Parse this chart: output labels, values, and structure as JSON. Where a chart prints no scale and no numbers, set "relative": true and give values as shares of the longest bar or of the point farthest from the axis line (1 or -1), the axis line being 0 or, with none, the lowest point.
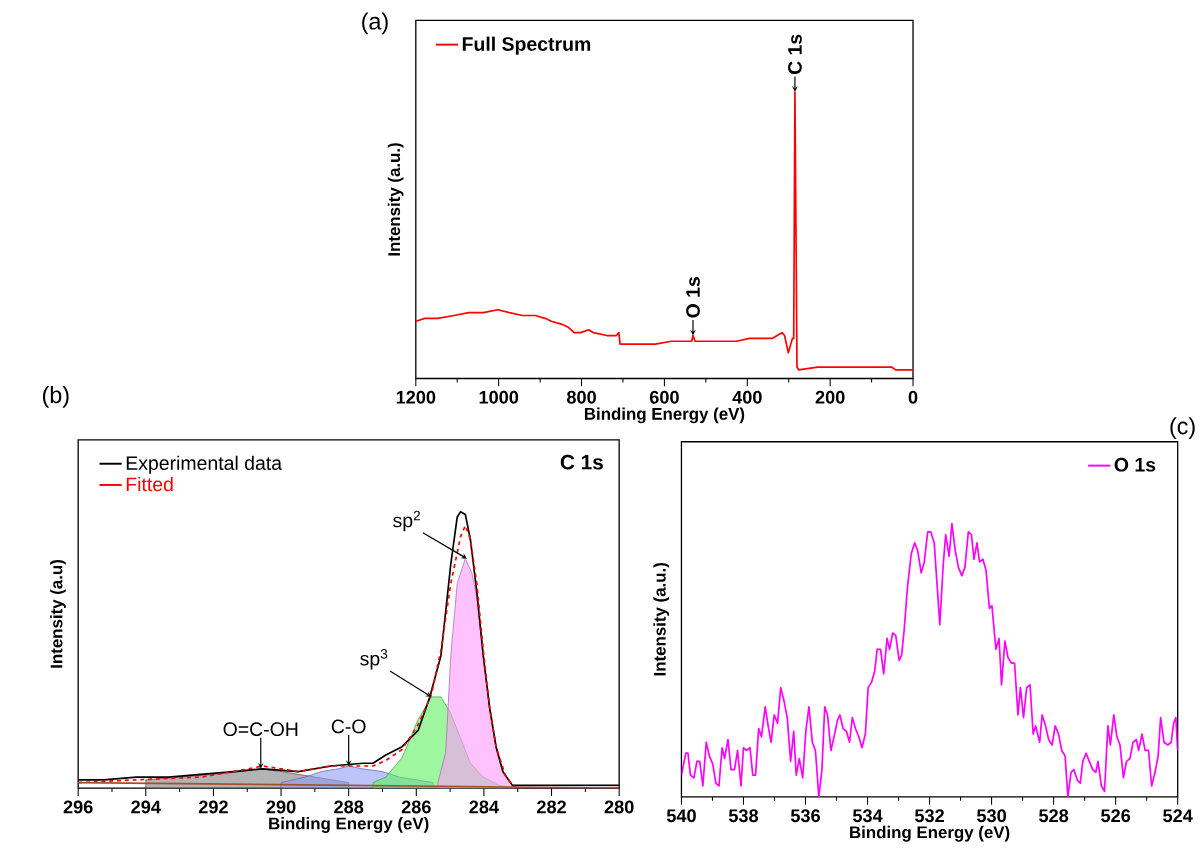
{
  "chart_data": [
    {
      "type": "line",
      "title": "(a)",
      "xlabel": "Binding Energy (eV)",
      "ylabel": "Intensity (a.u.)",
      "relative": true,
      "xlim": [
        1200,
        0
      ],
      "xticks": [
        1200,
        1000,
        800,
        600,
        400,
        200,
        0
      ],
      "tick_labels": "x",
      "legend": "top left",
      "annotations": [
        {
          "text": "O 1s",
          "x": 531,
          "y": 0.15
        },
        {
          "text": "C 1s",
          "x": 285,
          "y": 1.0
        }
      ],
      "series": [
        {
          "name": "Full Spectrum",
          "color": "#ff0000",
          "x": [
            1200,
            1178,
            1147,
            1108,
            1072,
            1037,
            1002,
            974,
            943,
            912,
            888,
            873,
            849,
            833,
            818,
            802,
            783,
            771,
            739,
            716,
            710,
            707,
            692,
            661,
            622,
            583,
            544,
            534,
            531,
            526,
            504,
            465,
            426,
            395,
            363,
            340,
            328,
            316,
            310,
            301,
            295,
            291,
            288,
            285,
            280,
            276,
            230,
            191,
            113,
            58,
            52,
            42,
            19,
            0
          ],
          "values": [
            0.2,
            0.21,
            0.21,
            0.22,
            0.23,
            0.23,
            0.24,
            0.23,
            0.22,
            0.22,
            0.21,
            0.2,
            0.19,
            0.18,
            0.16,
            0.16,
            0.17,
            0.16,
            0.15,
            0.15,
            0.16,
            0.12,
            0.12,
            0.12,
            0.12,
            0.13,
            0.13,
            0.13,
            0.15,
            0.13,
            0.13,
            0.13,
            0.13,
            0.14,
            0.14,
            0.14,
            0.15,
            0.16,
            0.15,
            0.09,
            0.12,
            0.14,
            0.14,
            1.0,
            0.04,
            0.03,
            0.04,
            0.04,
            0.04,
            0.04,
            0.04,
            0.03,
            0.03,
            0.03
          ]
        }
      ]
    },
    {
      "type": "line",
      "title": "(b)",
      "xlabel": "Binding Energy (eV)",
      "ylabel": "Intensity (a.u)",
      "relative": true,
      "xlim": [
        296,
        280
      ],
      "xticks": [
        296,
        294,
        292,
        290,
        288,
        286,
        284,
        282,
        280
      ],
      "tick_labels": "x",
      "legend": "top left",
      "annotations": [
        "C 1s",
        {
          "text": "O=C-OH",
          "x": 290.6,
          "y": 0.07
        },
        {
          "text": "C-O",
          "x": 288.0,
          "y": 0.08
        },
        {
          "text": "sp$^{2}$",
          "x": 284.5,
          "y": 0.83
        },
        {
          "text": "sp$^{3}$",
          "x": 285.55,
          "y": 0.33
        }
      ],
      "series": [
        {
          "name": "Experimental data",
          "color": "#000000",
          "x": [
            296.0,
            295.24,
            294.28,
            293.32,
            292.37,
            291.4,
            290.54,
            289.49,
            288.53,
            287.57,
            287.28,
            286.9,
            286.42,
            285.94,
            285.6,
            285.27,
            284.98,
            284.79,
            284.69,
            284.55,
            284.4,
            284.21,
            284.02,
            283.83,
            283.64,
            283.44,
            283.16,
            282.77,
            280.0
          ],
          "values": [
            0.03,
            0.03,
            0.04,
            0.04,
            0.05,
            0.06,
            0.07,
            0.06,
            0.08,
            0.09,
            0.09,
            0.12,
            0.15,
            0.21,
            0.33,
            0.48,
            0.81,
            0.98,
            1.0,
            0.99,
            0.9,
            0.71,
            0.48,
            0.29,
            0.15,
            0.06,
            0.01,
            0.01,
            0.01
          ]
        },
        {
          "name": "Fitted",
          "color": "#ff0000",
          "line_style": "dashed",
          "x": [
            296.0,
            294.28,
            292.37,
            291.4,
            290.54,
            289.49,
            288.53,
            287.57,
            287.28,
            286.9,
            286.42,
            285.94,
            285.55,
            285.27,
            284.98,
            284.69,
            284.55,
            284.4,
            284.21,
            284.02,
            283.83,
            283.64,
            283.35,
            283.06,
            280.0
          ],
          "values": [
            0.02,
            0.03,
            0.04,
            0.06,
            0.08,
            0.06,
            0.08,
            0.08,
            0.08,
            0.1,
            0.14,
            0.23,
            0.34,
            0.5,
            0.74,
            0.91,
            0.95,
            0.9,
            0.74,
            0.5,
            0.29,
            0.15,
            0.04,
            0.0,
            0.0
          ]
        },
        {
          "type": "area",
          "color": "#808080",
          "x": [
            294.0,
            293.0,
            292.0,
            291.2,
            290.6,
            290.0,
            289.5,
            289.0,
            288.5,
            288.0
          ],
          "values": [
            0.03,
            0.04,
            0.05,
            0.06,
            0.07,
            0.06,
            0.05,
            0.04,
            0.03,
            0.02
          ]
        },
        {
          "type": "area",
          "color": "#8f9cf5",
          "x": [
            290.0,
            289.3,
            288.8,
            288.3,
            288.0,
            287.6,
            287.0,
            286.5,
            286.0,
            285.5
          ],
          "values": [
            0.02,
            0.04,
            0.06,
            0.07,
            0.08,
            0.07,
            0.06,
            0.04,
            0.03,
            0.02
          ]
        },
        {
          "type": "area",
          "color": "#5ef25e",
          "x": [
            287.28,
            286.9,
            286.42,
            285.94,
            285.55,
            285.27,
            284.98,
            284.69,
            284.4,
            284.02,
            283.54,
            283.06
          ],
          "values": [
            0.02,
            0.04,
            0.11,
            0.25,
            0.33,
            0.33,
            0.27,
            0.18,
            0.09,
            0.04,
            0.01,
            0.0
          ]
        },
        {
          "type": "area",
          "color": "#ff99ff",
          "x": [
            285.36,
            285.13,
            284.98,
            284.79,
            284.55,
            284.36,
            284.21,
            284.02,
            283.83,
            283.64,
            283.44,
            283.16,
            282.87
          ],
          "values": [
            0.02,
            0.13,
            0.48,
            0.74,
            0.83,
            0.78,
            0.69,
            0.48,
            0.28,
            0.14,
            0.06,
            0.01,
            0.0
          ]
        },
        {
          "color": "#a0522d",
          "x": [
            296,
            280
          ],
          "values": [
            0.02,
            0.0
          ]
        }
      ]
    },
    {
      "type": "line",
      "title": "(c)",
      "xlabel": "Binding Energy (eV)",
      "ylabel": "Intensity (a.u.)",
      "relative": true,
      "xlim": [
        540,
        524
      ],
      "xticks": [
        540,
        538,
        536,
        534,
        532,
        530,
        528,
        526,
        524
      ],
      "tick_labels": "x",
      "legend": "top right",
      "series": [
        {
          "name": "O 1s",
          "color": "#ff00ff",
          "x": [
            540.0,
            539.86,
            539.79,
            539.71,
            539.6,
            539.5,
            539.41,
            539.31,
            539.2,
            539.1,
            538.99,
            538.89,
            538.79,
            538.69,
            538.61,
            538.5,
            538.4,
            538.29,
            538.19,
            538.08,
            538.0,
            537.91,
            537.79,
            537.7,
            537.61,
            537.51,
            537.42,
            537.3,
            537.19,
            537.11,
            537.01,
            536.9,
            536.8,
            536.69,
            536.59,
            536.48,
            536.38,
            536.3,
            536.2,
            536.09,
            535.99,
            535.89,
            535.78,
            535.68,
            535.57,
            535.47,
            535.38,
            535.29,
            535.18,
            535.08,
            534.97,
            534.89,
            534.79,
            534.68,
            534.58,
            534.49,
            534.39,
            534.28,
            534.18,
            534.07,
            533.98,
            533.87,
            533.77,
            533.69,
            533.58,
            533.48,
            533.37,
            533.29,
            533.19,
            533.09,
            532.98,
            532.9,
            532.82,
            532.71,
            532.59,
            532.48,
            532.38,
            532.27,
            532.17,
            532.06,
            531.96,
            531.85,
            531.67,
            531.56,
            531.48,
            531.37,
            531.28,
            531.17,
            531.07,
            530.96,
            530.86,
            530.75,
            530.65,
            530.57,
            530.47,
            530.39,
            530.28,
            530.18,
            530.07,
            529.99,
            529.86,
            529.76,
            529.68,
            529.57,
            529.47,
            529.36,
            529.26,
            529.15,
            529.07,
            528.97,
            528.87,
            528.76,
            528.66,
            528.58,
            528.45,
            528.37,
            528.26,
            528.16,
            528.05,
            527.95,
            527.84,
            527.74,
            527.63,
            527.54,
            527.44,
            527.35,
            527.23,
            527.14,
            527.06,
            526.95,
            526.85,
            526.74,
            526.64,
            526.57,
            526.46,
            526.36,
            526.25,
            526.17,
            526.06,
            525.96,
            525.86,
            525.75,
            525.65,
            525.54,
            525.44,
            525.33,
            525.26,
            525.15,
            525.05,
            524.94,
            524.84,
            524.73,
            524.63,
            524.55,
            524.44,
            524.32,
            524.21,
            524.13,
            524.06,
            524.0
          ],
          "values": [
            0.08,
            0.16,
            0.16,
            0.08,
            0.07,
            0.13,
            0.13,
            0.04,
            0.2,
            0.15,
            0.12,
            0.05,
            0.04,
            0.18,
            0.14,
            0.21,
            0.1,
            0.1,
            0.17,
            0.04,
            0.18,
            0.17,
            0.18,
            0.08,
            0.08,
            0.25,
            0.22,
            0.33,
            0.25,
            0.2,
            0.3,
            0.27,
            0.4,
            0.35,
            0.29,
            0.13,
            0.24,
            0.08,
            0.14,
            0.07,
            0.24,
            0.33,
            0.2,
            0.17,
            0.0,
            0.1,
            0.33,
            0.3,
            0.17,
            0.22,
            0.28,
            0.3,
            0.25,
            0.24,
            0.2,
            0.29,
            0.25,
            0.22,
            0.18,
            0.23,
            0.4,
            0.42,
            0.46,
            0.54,
            0.54,
            0.45,
            0.58,
            0.54,
            0.6,
            0.59,
            0.5,
            0.52,
            0.61,
            0.77,
            0.89,
            0.93,
            0.9,
            0.82,
            0.86,
            0.97,
            0.97,
            0.93,
            0.63,
            0.85,
            0.96,
            0.88,
            1.0,
            0.9,
            0.84,
            0.81,
            0.84,
            0.97,
            0.96,
            0.87,
            0.93,
            0.86,
            0.87,
            0.83,
            0.69,
            0.7,
            0.54,
            0.58,
            0.41,
            0.57,
            0.51,
            0.49,
            0.49,
            0.3,
            0.4,
            0.29,
            0.4,
            0.41,
            0.23,
            0.26,
            0.2,
            0.3,
            0.26,
            0.21,
            0.19,
            0.26,
            0.23,
            0.17,
            0.15,
            0.0,
            0.09,
            0.1,
            0.06,
            0.05,
            0.13,
            0.16,
            0.13,
            0.1,
            0.09,
            0.13,
            0.04,
            0.02,
            0.26,
            0.19,
            0.3,
            0.22,
            0.19,
            0.07,
            0.13,
            0.14,
            0.2,
            0.21,
            0.17,
            0.23,
            0.17,
            0.17,
            0.04,
            0.09,
            0.15,
            0.29,
            0.2,
            0.19,
            0.2,
            0.27,
            0.29,
            0.17
          ]
        }
      ]
    }
  ]
}
